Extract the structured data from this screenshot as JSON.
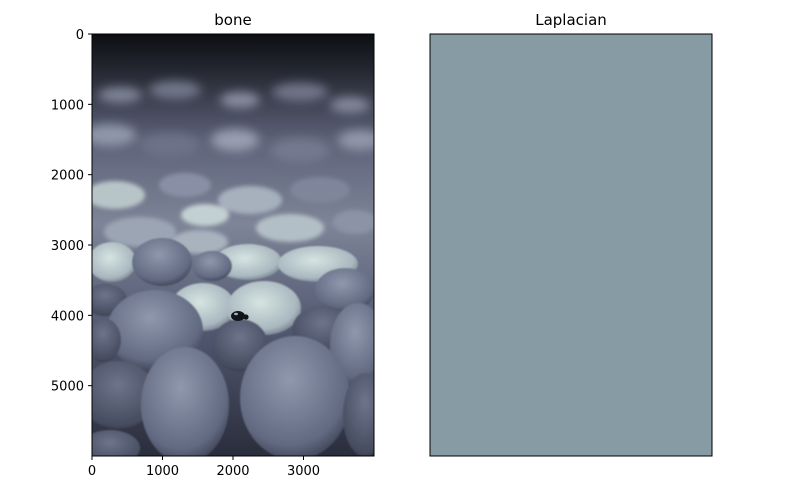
{
  "chart_data": [
    {
      "type": "image",
      "title": "bone",
      "colormap": "bone",
      "xlabel": "",
      "ylabel": "",
      "xlim": [
        0,
        4000
      ],
      "ylim": [
        6000,
        0
      ],
      "xticks": [
        0,
        1000,
        2000,
        3000
      ],
      "yticks": [
        0,
        1000,
        2000,
        3000,
        4000,
        5000
      ],
      "grid": false,
      "content": "grayscale photo of river pebbles with a small beetle, shown in bone colormap"
    },
    {
      "type": "image",
      "title": "Laplacian",
      "colormap": "bone",
      "xlabel": "",
      "ylabel": "",
      "axes_visible": false,
      "grid": false,
      "fill_color": "#879ba5"
    }
  ]
}
